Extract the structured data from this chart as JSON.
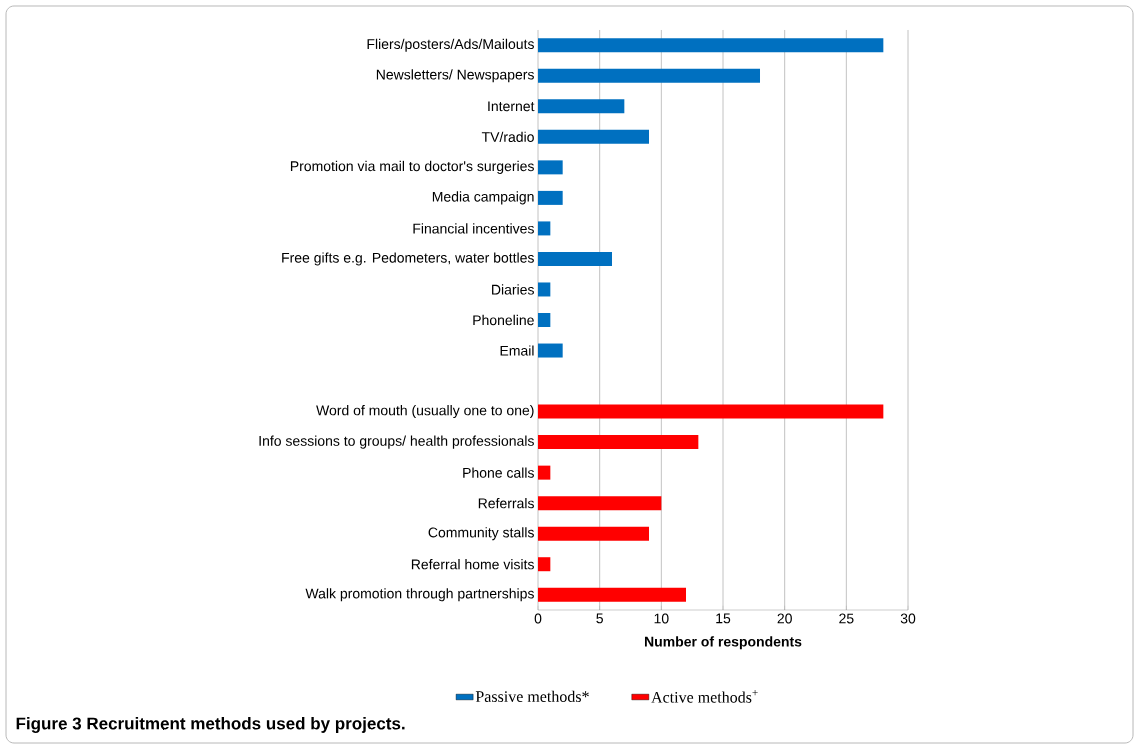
{
  "chart_data": {
    "type": "bar",
    "orientation": "horizontal",
    "title": "**Figure 3** **Recruitment methods used by projects.**",
    "xlabel": "Number of respondents",
    "categories": [
      "Fliers/posters/Ads/Mailouts",
      "Newsletters/ Newspapers",
      "Internet",
      "TV/radio",
      "Promotion via mail to doctor's surgeries",
      "Media campaign",
      "Financial incentives",
      "Free gifts e.g. Pedometers, water bottles",
      "Diaries",
      "Phoneline",
      "Email",
      null,
      "Word of mouth (usually one to one)",
      "Info sessions to groups/ health professionals",
      "Phone calls",
      "Referrals",
      "Community stalls",
      "Referral home visits",
      "Walk promotion through partnerships"
    ],
    "series": [
      {
        "name": "Passive methods*",
        "color": "#0070c0",
        "values": [
          28,
          18,
          7,
          9,
          2,
          2,
          1,
          6,
          1,
          1,
          2,
          null,
          null,
          null,
          null,
          null,
          null,
          null,
          null
        ]
      },
      {
        "name": "Active methods$^{+}$",
        "color": "#ff0000",
        "values": [
          null,
          null,
          null,
          null,
          null,
          null,
          null,
          null,
          null,
          null,
          null,
          null,
          28,
          13,
          1,
          10,
          9,
          1,
          12
        ]
      }
    ],
    "xlim": [
      0,
      30
    ],
    "xticks": [
      0,
      5,
      10,
      15,
      20,
      25,
      30
    ],
    "grid": "x",
    "legend": "bottom"
  }
}
